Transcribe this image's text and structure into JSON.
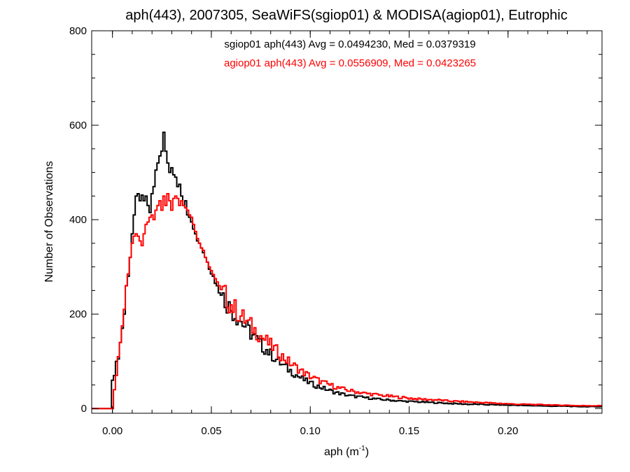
{
  "chart_data": {
    "type": "histogram",
    "title": "aph(443), 2007305, SeaWiFS(sgiop01) & MODISA(agiop01), Eutrophic",
    "xlabel_main": "aph (m",
    "xlabel_sup": "-1",
    "xlabel_close": ")",
    "ylabel": "Number of Observations",
    "xlim": [
      -0.0105,
      0.2475
    ],
    "ylim": [
      -10,
      800
    ],
    "bin_start": -0.0105,
    "bin_width": 0.001,
    "xticks": [
      0.0,
      0.05,
      0.1,
      0.15,
      0.2
    ],
    "xtick_labels": [
      "0.00",
      "0.05",
      "0.10",
      "0.15",
      "0.20"
    ],
    "yticks": [
      0,
      200,
      400,
      600,
      800
    ],
    "ytick_labels": [
      "0",
      "200",
      "400",
      "600",
      "800"
    ],
    "annotations": [
      {
        "text": "sgiop01 aph(443) Avg = 0.0494230, Med = 0.0379319",
        "color": "#000000"
      },
      {
        "text": "agiop01 aph(443) Avg = 0.0556909, Med = 0.0423265",
        "color": "#ff0000"
      }
    ],
    "series": [
      {
        "name": "sgiop01",
        "color": "#000000",
        "points": [
          [
            -0.0105,
            0
          ],
          [
            -0.0005,
            0
          ],
          [
            0.0,
            60
          ],
          [
            0.001,
            70
          ],
          [
            0.002,
            100
          ],
          [
            0.003,
            105
          ],
          [
            0.004,
            140
          ],
          [
            0.005,
            170
          ],
          [
            0.006,
            200
          ],
          [
            0.007,
            260
          ],
          [
            0.008,
            280
          ],
          [
            0.009,
            320
          ],
          [
            0.01,
            370
          ],
          [
            0.011,
            410
          ],
          [
            0.012,
            450
          ],
          [
            0.013,
            455
          ],
          [
            0.014,
            440
          ],
          [
            0.015,
            452
          ],
          [
            0.016,
            440
          ],
          [
            0.017,
            450
          ],
          [
            0.018,
            430
          ],
          [
            0.019,
            415
          ],
          [
            0.02,
            455
          ],
          [
            0.021,
            470
          ],
          [
            0.022,
            505
          ],
          [
            0.023,
            520
          ],
          [
            0.024,
            535
          ],
          [
            0.025,
            545
          ],
          [
            0.026,
            585
          ],
          [
            0.027,
            545
          ],
          [
            0.028,
            520
          ],
          [
            0.029,
            500
          ],
          [
            0.03,
            510
          ],
          [
            0.031,
            495
          ],
          [
            0.032,
            490
          ],
          [
            0.033,
            470
          ],
          [
            0.034,
            475
          ],
          [
            0.035,
            450
          ],
          [
            0.036,
            430
          ],
          [
            0.037,
            440
          ],
          [
            0.038,
            410
          ],
          [
            0.039,
            405
          ],
          [
            0.04,
            395
          ],
          [
            0.041,
            380
          ],
          [
            0.042,
            370
          ],
          [
            0.043,
            355
          ],
          [
            0.044,
            350
          ],
          [
            0.045,
            340
          ],
          [
            0.046,
            330
          ],
          [
            0.047,
            320
          ],
          [
            0.048,
            310
          ],
          [
            0.049,
            295
          ],
          [
            0.05,
            285
          ],
          [
            0.051,
            280
          ],
          [
            0.052,
            265
          ],
          [
            0.053,
            260
          ],
          [
            0.054,
            245
          ],
          [
            0.055,
            240
          ],
          [
            0.056,
            235
          ],
          [
            0.057,
            230
          ],
          [
            0.058,
            225
          ],
          [
            0.059,
            215
          ],
          [
            0.06,
            210
          ],
          [
            0.062,
            200
          ],
          [
            0.064,
            190
          ],
          [
            0.066,
            180
          ],
          [
            0.068,
            170
          ],
          [
            0.07,
            160
          ],
          [
            0.072,
            150
          ],
          [
            0.074,
            140
          ],
          [
            0.076,
            130
          ],
          [
            0.078,
            125
          ],
          [
            0.08,
            115
          ],
          [
            0.082,
            108
          ],
          [
            0.084,
            100
          ],
          [
            0.086,
            92
          ],
          [
            0.088,
            86
          ],
          [
            0.09,
            80
          ],
          [
            0.092,
            74
          ],
          [
            0.094,
            68
          ],
          [
            0.096,
            63
          ],
          [
            0.098,
            58
          ],
          [
            0.1,
            54
          ],
          [
            0.102,
            50
          ],
          [
            0.104,
            47
          ],
          [
            0.106,
            44
          ],
          [
            0.108,
            41
          ],
          [
            0.11,
            38
          ],
          [
            0.112,
            35
          ],
          [
            0.114,
            33
          ],
          [
            0.116,
            31
          ],
          [
            0.118,
            29
          ],
          [
            0.12,
            27
          ],
          [
            0.124,
            25
          ],
          [
            0.128,
            23
          ],
          [
            0.132,
            21
          ],
          [
            0.136,
            19
          ],
          [
            0.14,
            18
          ],
          [
            0.145,
            16
          ],
          [
            0.15,
            15
          ],
          [
            0.155,
            14
          ],
          [
            0.16,
            13
          ],
          [
            0.165,
            12
          ],
          [
            0.17,
            11
          ],
          [
            0.175,
            10
          ],
          [
            0.18,
            9
          ],
          [
            0.185,
            9
          ],
          [
            0.19,
            8
          ],
          [
            0.195,
            8
          ],
          [
            0.2,
            7
          ],
          [
            0.205,
            7
          ],
          [
            0.21,
            6
          ],
          [
            0.215,
            6
          ],
          [
            0.22,
            5
          ],
          [
            0.225,
            5
          ],
          [
            0.23,
            5
          ],
          [
            0.235,
            4
          ],
          [
            0.24,
            4
          ],
          [
            0.2475,
            4
          ]
        ]
      },
      {
        "name": "agiop01",
        "color": "#ff0000",
        "points": [
          [
            -0.0105,
            0
          ],
          [
            0.0005,
            0
          ],
          [
            0.001,
            40
          ],
          [
            0.002,
            70
          ],
          [
            0.003,
            110
          ],
          [
            0.004,
            140
          ],
          [
            0.005,
            175
          ],
          [
            0.006,
            210
          ],
          [
            0.007,
            260
          ],
          [
            0.008,
            285
          ],
          [
            0.009,
            320
          ],
          [
            0.01,
            350
          ],
          [
            0.011,
            365
          ],
          [
            0.012,
            370
          ],
          [
            0.013,
            365
          ],
          [
            0.014,
            355
          ],
          [
            0.015,
            345
          ],
          [
            0.016,
            370
          ],
          [
            0.017,
            390
          ],
          [
            0.018,
            395
          ],
          [
            0.019,
            405
          ],
          [
            0.02,
            410
          ],
          [
            0.021,
            400
          ],
          [
            0.022,
            420
          ],
          [
            0.023,
            430
          ],
          [
            0.024,
            440
          ],
          [
            0.025,
            420
          ],
          [
            0.026,
            450
          ],
          [
            0.027,
            430
          ],
          [
            0.028,
            455
          ],
          [
            0.029,
            440
          ],
          [
            0.03,
            420
          ],
          [
            0.031,
            445
          ],
          [
            0.032,
            450
          ],
          [
            0.033,
            445
          ],
          [
            0.034,
            430
          ],
          [
            0.035,
            440
          ],
          [
            0.036,
            430
          ],
          [
            0.037,
            425
          ],
          [
            0.038,
            420
          ],
          [
            0.039,
            410
          ],
          [
            0.04,
            405
          ],
          [
            0.041,
            390
          ],
          [
            0.042,
            375
          ],
          [
            0.043,
            360
          ],
          [
            0.044,
            350
          ],
          [
            0.045,
            340
          ],
          [
            0.046,
            335
          ],
          [
            0.047,
            320
          ],
          [
            0.048,
            310
          ],
          [
            0.049,
            300
          ],
          [
            0.05,
            292
          ],
          [
            0.051,
            284
          ],
          [
            0.052,
            275
          ],
          [
            0.053,
            268
          ],
          [
            0.054,
            260
          ],
          [
            0.055,
            252
          ],
          [
            0.056,
            245
          ],
          [
            0.057,
            238
          ],
          [
            0.058,
            232
          ],
          [
            0.059,
            225
          ],
          [
            0.06,
            220
          ],
          [
            0.062,
            210
          ],
          [
            0.064,
            200
          ],
          [
            0.066,
            192
          ],
          [
            0.068,
            183
          ],
          [
            0.07,
            175
          ],
          [
            0.072,
            166
          ],
          [
            0.074,
            158
          ],
          [
            0.076,
            150
          ],
          [
            0.078,
            142
          ],
          [
            0.08,
            134
          ],
          [
            0.082,
            126
          ],
          [
            0.084,
            118
          ],
          [
            0.086,
            110
          ],
          [
            0.088,
            103
          ],
          [
            0.09,
            96
          ],
          [
            0.092,
            90
          ],
          [
            0.094,
            84
          ],
          [
            0.096,
            78
          ],
          [
            0.098,
            73
          ],
          [
            0.1,
            68
          ],
          [
            0.102,
            64
          ],
          [
            0.104,
            60
          ],
          [
            0.106,
            56
          ],
          [
            0.108,
            53
          ],
          [
            0.11,
            50
          ],
          [
            0.112,
            47
          ],
          [
            0.114,
            44
          ],
          [
            0.116,
            42
          ],
          [
            0.118,
            40
          ],
          [
            0.12,
            38
          ],
          [
            0.124,
            35
          ],
          [
            0.128,
            32
          ],
          [
            0.132,
            30
          ],
          [
            0.136,
            28
          ],
          [
            0.14,
            26
          ],
          [
            0.145,
            24
          ],
          [
            0.15,
            22
          ],
          [
            0.155,
            20
          ],
          [
            0.16,
            19
          ],
          [
            0.165,
            18
          ],
          [
            0.17,
            16
          ],
          [
            0.175,
            15
          ],
          [
            0.18,
            14
          ],
          [
            0.185,
            13
          ],
          [
            0.19,
            12
          ],
          [
            0.195,
            11
          ],
          [
            0.2,
            10
          ],
          [
            0.205,
            9
          ],
          [
            0.21,
            9
          ],
          [
            0.215,
            8
          ],
          [
            0.22,
            8
          ],
          [
            0.225,
            7
          ],
          [
            0.23,
            7
          ],
          [
            0.235,
            6
          ],
          [
            0.24,
            6
          ],
          [
            0.2475,
            6
          ]
        ]
      }
    ]
  }
}
